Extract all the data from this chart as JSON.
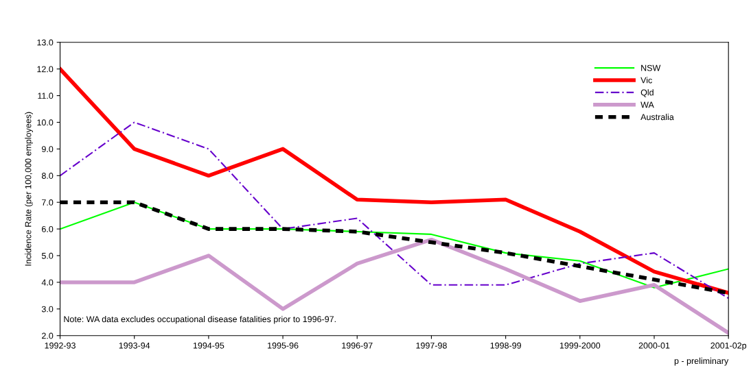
{
  "chart_data": {
    "type": "line",
    "ylabel": "Incidence Rate (per 100,000 employees)",
    "categories": [
      "1992-93",
      "1993-94",
      "1994-95",
      "1995-96",
      "1996-97",
      "1997-98",
      "1998-99",
      "1999-2000",
      "2000-01",
      "2001-02p"
    ],
    "series": [
      {
        "name": "NSW",
        "color": "#00ff00",
        "line_style": "solid",
        "values": [
          6.0,
          7.0,
          6.0,
          6.0,
          5.9,
          5.8,
          5.1,
          4.8,
          3.8,
          4.5
        ]
      },
      {
        "name": "Vic",
        "color": "#ff0000",
        "line_style": "solid",
        "values": [
          12.0,
          9.0,
          8.0,
          9.0,
          7.1,
          7.0,
          7.1,
          5.9,
          4.4,
          3.6
        ]
      },
      {
        "name": "Qld",
        "color": "#6600cc",
        "line_style": "dashdot",
        "values": [
          8.0,
          10.0,
          9.0,
          6.0,
          6.4,
          3.9,
          3.9,
          4.7,
          5.1,
          3.4
        ]
      },
      {
        "name": "WA",
        "color": "#cc99cc",
        "line_style": "solid",
        "values": [
          4.0,
          4.0,
          5.0,
          3.0,
          4.7,
          5.6,
          4.5,
          3.3,
          3.9,
          2.1
        ]
      },
      {
        "name": "Australia",
        "color": "#000000",
        "line_style": "dashed",
        "values": [
          7.0,
          7.0,
          6.0,
          6.0,
          5.9,
          5.5,
          5.1,
          4.6,
          4.1,
          3.6
        ]
      }
    ],
    "ylim": [
      2,
      13
    ],
    "yticks": [
      {
        "value": 2,
        "label": "2.0"
      },
      {
        "value": 3,
        "label": "3.0"
      },
      {
        "value": 4,
        "label": "4.0"
      },
      {
        "value": 5,
        "label": "5.0"
      },
      {
        "value": 6,
        "label": "6.0"
      },
      {
        "value": 7,
        "label": "7.0"
      },
      {
        "value": 8,
        "label": "8.0"
      },
      {
        "value": 9,
        "label": "9.0"
      },
      {
        "value": 10,
        "label": "10.0"
      },
      {
        "value": 11,
        "label": "11.0"
      },
      {
        "value": 12,
        "label": "12.0"
      },
      {
        "value": 13,
        "label": "13.0"
      }
    ],
    "grid": false,
    "legend": "top right",
    "marker": "none",
    "annotations": [
      "Note: WA data excludes occupational disease fatalities prior to 1996-97.",
      "p - preliminary"
    ]
  }
}
